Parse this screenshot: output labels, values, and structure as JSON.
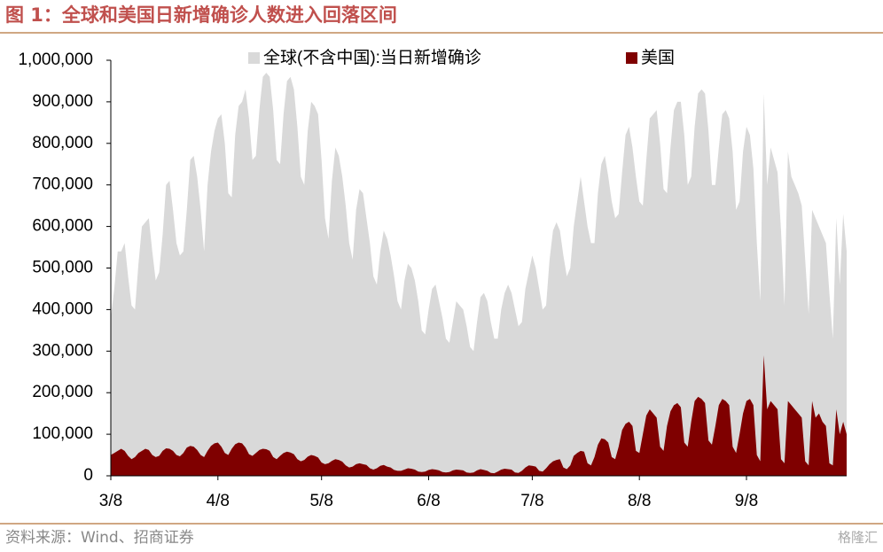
{
  "title": "图 1：全球和美国日新增确诊人数进入回落区间",
  "source": "资料来源：Wind、招商证券",
  "watermark": "格隆汇",
  "chart_data": {
    "type": "area",
    "categories": [
      "3/8",
      null,
      null,
      null,
      null,
      null,
      null,
      null,
      null,
      null,
      null,
      null,
      null,
      null,
      null,
      null,
      null,
      null,
      null,
      null,
      null,
      null,
      null,
      null,
      null,
      null,
      null,
      null,
      null,
      null,
      null,
      "4/8",
      null,
      null,
      null,
      null,
      null,
      null,
      null,
      null,
      null,
      null,
      null,
      null,
      null,
      null,
      null,
      null,
      null,
      null,
      null,
      null,
      null,
      null,
      null,
      null,
      null,
      null,
      null,
      null,
      null,
      "5/8",
      null,
      null,
      null,
      null,
      null,
      null,
      null,
      null,
      null,
      null,
      null,
      null,
      null,
      null,
      null,
      null,
      null,
      null,
      null,
      null,
      null,
      null,
      null,
      null,
      null,
      null,
      null,
      null,
      null,
      null,
      "6/8",
      null,
      null,
      null,
      null,
      null,
      null,
      null,
      null,
      null,
      null,
      null,
      null,
      null,
      null,
      null,
      null,
      null,
      null,
      null,
      null,
      null,
      null,
      null,
      null,
      null,
      null,
      null,
      null,
      null,
      "7/8",
      null,
      null,
      null,
      null,
      null,
      null,
      null,
      null,
      null,
      null,
      null,
      null,
      null,
      null,
      null,
      null,
      null,
      null,
      null,
      null,
      null,
      null,
      null,
      null,
      null,
      null,
      null,
      null,
      null,
      null,
      "8/8",
      null,
      null,
      null,
      null,
      null,
      null,
      null,
      null,
      null,
      null,
      null,
      null,
      null,
      null,
      null,
      null,
      null,
      null,
      null,
      null,
      null,
      null,
      null,
      null,
      null,
      null,
      null,
      null,
      null,
      null,
      "9/8",
      null,
      null,
      null,
      null,
      null,
      null,
      null,
      null,
      null,
      null,
      null,
      null,
      null,
      null,
      null,
      null,
      null,
      null,
      null,
      null,
      null,
      null,
      null,
      null,
      null,
      null,
      null,
      null,
      null
    ],
    "series": [
      {
        "name": "全球(不含中国):当日新增确诊",
        "color": "#d9d9d9",
        "values": [
          380000,
          450000,
          540000,
          540000,
          560000,
          480000,
          410000,
          400000,
          510000,
          600000,
          610000,
          620000,
          540000,
          470000,
          490000,
          580000,
          700000,
          710000,
          640000,
          560000,
          530000,
          540000,
          640000,
          760000,
          770000,
          720000,
          640000,
          540000,
          700000,
          780000,
          830000,
          860000,
          870000,
          800000,
          680000,
          670000,
          820000,
          890000,
          900000,
          930000,
          860000,
          760000,
          770000,
          880000,
          960000,
          970000,
          960000,
          880000,
          760000,
          750000,
          870000,
          950000,
          960000,
          930000,
          840000,
          720000,
          700000,
          830000,
          900000,
          890000,
          870000,
          760000,
          620000,
          570000,
          710000,
          790000,
          770000,
          720000,
          650000,
          560000,
          520000,
          640000,
          690000,
          680000,
          620000,
          560000,
          480000,
          460000,
          540000,
          590000,
          570000,
          530000,
          480000,
          420000,
          400000,
          470000,
          510000,
          500000,
          470000,
          420000,
          350000,
          340000,
          400000,
          450000,
          460000,
          420000,
          380000,
          330000,
          320000,
          370000,
          420000,
          410000,
          400000,
          360000,
          310000,
          300000,
          370000,
          430000,
          440000,
          420000,
          370000,
          330000,
          330000,
          400000,
          440000,
          460000,
          440000,
          400000,
          360000,
          370000,
          450000,
          490000,
          530000,
          500000,
          450000,
          400000,
          410000,
          520000,
          590000,
          610000,
          590000,
          530000,
          480000,
          500000,
          600000,
          660000,
          720000,
          660000,
          600000,
          560000,
          560000,
          680000,
          750000,
          770000,
          720000,
          660000,
          620000,
          630000,
          730000,
          820000,
          840000,
          790000,
          720000,
          660000,
          650000,
          760000,
          860000,
          870000,
          880000,
          800000,
          690000,
          680000,
          790000,
          880000,
          900000,
          900000,
          820000,
          700000,
          720000,
          840000,
          920000,
          930000,
          920000,
          830000,
          700000,
          700000,
          790000,
          870000,
          880000,
          860000,
          780000,
          640000,
          660000,
          780000,
          840000,
          820000,
          740000,
          560000,
          420000,
          920000,
          700000,
          790000,
          760000,
          730000,
          590000,
          410000,
          780000,
          720000,
          700000,
          680000,
          650000,
          520000,
          390000,
          640000,
          620000,
          600000,
          580000,
          560000,
          440000,
          330000,
          620000,
          460000,
          630000,
          540000
        ]
      },
      {
        "name": "美国",
        "color": "#7f0000",
        "values": [
          50000,
          55000,
          60000,
          65000,
          60000,
          48000,
          40000,
          45000,
          55000,
          60000,
          65000,
          62000,
          50000,
          45000,
          48000,
          60000,
          66000,
          65000,
          60000,
          50000,
          47000,
          55000,
          68000,
          72000,
          70000,
          62000,
          50000,
          45000,
          60000,
          72000,
          78000,
          80000,
          70000,
          55000,
          50000,
          65000,
          76000,
          80000,
          78000,
          68000,
          52000,
          48000,
          55000,
          62000,
          65000,
          64000,
          60000,
          45000,
          40000,
          48000,
          55000,
          58000,
          56000,
          52000,
          40000,
          35000,
          38000,
          46000,
          50000,
          48000,
          44000,
          32000,
          28000,
          30000,
          36000,
          40000,
          38000,
          34000,
          25000,
          20000,
          22000,
          28000,
          30000,
          28000,
          26000,
          18000,
          15000,
          18000,
          24000,
          26000,
          22000,
          20000,
          14000,
          12000,
          12000,
          15000,
          18000,
          17000,
          15000,
          10000,
          9000,
          10000,
          14000,
          16000,
          15000,
          13000,
          9000,
          8000,
          9000,
          13000,
          15000,
          14000,
          13000,
          8000,
          7000,
          8000,
          13000,
          16000,
          14000,
          12000,
          7000,
          6000,
          10000,
          15000,
          17000,
          16000,
          15000,
          8000,
          7000,
          12000,
          20000,
          25000,
          24000,
          22000,
          12000,
          10000,
          18000,
          28000,
          35000,
          38000,
          40000,
          20000,
          16000,
          25000,
          48000,
          55000,
          60000,
          58000,
          30000,
          25000,
          45000,
          75000,
          90000,
          88000,
          80000,
          45000,
          40000,
          70000,
          110000,
          125000,
          130000,
          120000,
          60000,
          55000,
          100000,
          145000,
          160000,
          150000,
          140000,
          70000,
          60000,
          120000,
          155000,
          170000,
          175000,
          165000,
          80000,
          70000,
          130000,
          180000,
          190000,
          185000,
          175000,
          85000,
          75000,
          120000,
          170000,
          185000,
          180000,
          170000,
          70000,
          55000,
          100000,
          150000,
          180000,
          185000,
          170000,
          50000,
          35000,
          290000,
          160000,
          180000,
          170000,
          160000,
          40000,
          30000,
          180000,
          170000,
          160000,
          150000,
          140000,
          35000,
          25000,
          180000,
          140000,
          150000,
          130000,
          120000,
          30000,
          25000,
          160000,
          100000,
          130000,
          100000
        ]
      }
    ],
    "ylim": [
      0,
      1000000
    ],
    "yticks": [
      0,
      {
        "value": 100000,
        "label": "100,000"
      },
      {
        "value": 200000,
        "label": "200,000"
      },
      {
        "value": 300000,
        "label": "300,000"
      },
      {
        "value": 400000,
        "label": "400,000"
      },
      {
        "value": 500000,
        "label": "500,000"
      },
      {
        "value": 600000,
        "label": "600,000"
      },
      {
        "value": 700000,
        "label": "700,000"
      },
      {
        "value": 800000,
        "label": "800,000"
      },
      {
        "value": 900000,
        "label": "900,000"
      },
      {
        "value": 1000000,
        "label": "1,000,000"
      }
    ],
    "grid": false,
    "legend": "top"
  }
}
